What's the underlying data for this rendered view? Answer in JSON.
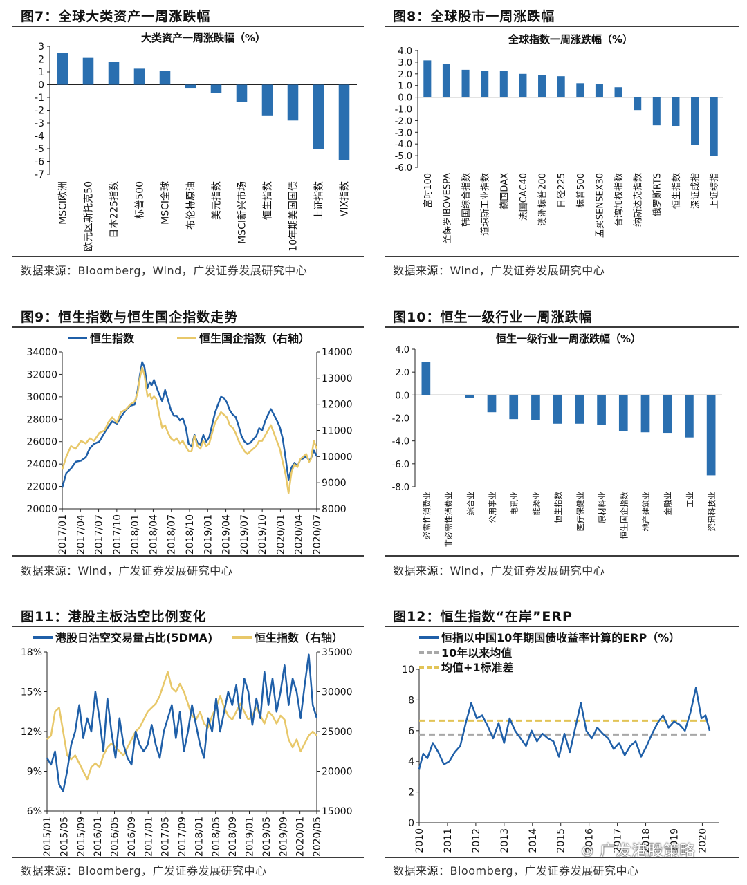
{
  "figures": {
    "fig7": {
      "title": "图7：全球大类资产一周涨跌幅",
      "source": "数据来源：Bloomberg，Wind，广发证券发展研究中心"
    },
    "fig8": {
      "title": "图8：全球股市一周涨跌幅",
      "source": "数据来源：Wind，广发证券发展研究中心"
    },
    "fig9": {
      "title": "图9：恒生指数与恒生国企指数走势",
      "source": "数据来源：Wind，广发证券发展研究中心"
    },
    "fig10": {
      "title": "图10：恒生一级行业一周涨跌幅",
      "source": "数据来源：Wind，广发证券发展研究中心"
    },
    "fig11": {
      "title": "图11：港股主板沽空比例变化",
      "source": "数据来源：Bloomberg，广发证券发展研究中心"
    },
    "fig12": {
      "title": "图12：恒生指数“在岸”ERP",
      "source": "数据来源：Bloomberg，广发证券发展研究中心"
    }
  },
  "watermark": "广发港股策略",
  "colors": {
    "bar": "#2a6fb0",
    "blue_line": "#1f5fa8",
    "gold_line": "#e8c86a",
    "gray_dash": "#a8a8a8",
    "gold_dash": "#e2c457"
  },
  "chart_data": [
    {
      "id": "fig7",
      "type": "bar",
      "title": "大类资产一周涨跌幅（%）",
      "categories": [
        "MSCI欧洲",
        "欧元区斯托克50",
        "日本225指数",
        "标普500",
        "MSCI全球",
        "布伦特原油",
        "美元指数",
        "MSCI新兴市场",
        "恒生指数",
        "10年期美国国债",
        "上证指数",
        "VIX指数"
      ],
      "values": [
        2.5,
        2.1,
        1.8,
        1.25,
        1.1,
        -0.3,
        -0.65,
        -1.35,
        -2.45,
        -2.8,
        -5.0,
        -5.9
      ],
      "ylim": [
        -7,
        3
      ],
      "yticks": [
        "3",
        "2",
        "1",
        "0",
        "-1",
        "-2",
        "-3",
        "-4",
        "-5",
        "-6",
        "-7"
      ]
    },
    {
      "id": "fig8",
      "type": "bar",
      "title": "全球指数一周涨跌幅（%）",
      "categories": [
        "富时100",
        "圣保罗IBOVESPA",
        "韩国综合指数",
        "道琼斯工业指数",
        "德国DAX",
        "法国CAC40",
        "澳洲标普200",
        "日经225",
        "标普500",
        "孟买SENSEX30",
        "台湾加权指数",
        "纳斯达克指数",
        "俄罗斯RTS",
        "恒生指数",
        "深证成指",
        "上证综指"
      ],
      "values": [
        3.15,
        2.85,
        2.35,
        2.25,
        2.25,
        2.0,
        1.9,
        1.8,
        1.2,
        1.1,
        0.85,
        -1.1,
        -2.4,
        -2.45,
        -4.05,
        -5.0
      ],
      "ylim": [
        -6,
        4
      ],
      "yticks": [
        "4.0",
        "3.0",
        "2.0",
        "1.0",
        "0.0",
        "-1.0",
        "-2.0",
        "-3.0",
        "-4.0",
        "-5.0",
        "-6.0"
      ]
    },
    {
      "id": "fig9",
      "type": "line",
      "legend": [
        "恒生指数",
        "恒生国企指数（右轴）"
      ],
      "xticks": [
        "2017/01",
        "2017/04",
        "2017/07",
        "2017/10",
        "2018/01",
        "2018/04",
        "2018/07",
        "2018/10",
        "2019/01",
        "2019/04",
        "2019/07",
        "2019/10",
        "2020/01",
        "2020/04",
        "2020/07"
      ],
      "yticks_left": [
        "34000",
        "32000",
        "30000",
        "28000",
        "26000",
        "24000",
        "22000",
        "20000"
      ],
      "yticks_right": [
        "14000",
        "13000",
        "12000",
        "11000",
        "10000",
        "9000",
        "8000"
      ],
      "ylim_left": [
        20000,
        34000
      ],
      "ylim_right": [
        8000,
        14000
      ],
      "series": [
        {
          "name": "恒生指数",
          "axis": "left",
          "x": [
            0,
            0.7,
            1.5,
            2.3,
            3.2,
            4.0,
            4.7,
            5.4,
            6.3,
            7.2,
            7.8,
            8.5,
            9.3,
            10.0,
            10.8,
            11.6,
            12.3,
            12.8,
            13.2,
            13.6,
            14.0,
            14.5,
            14.9,
            15.2,
            15.6,
            16.0,
            16.5,
            17.0,
            17.5,
            18.0,
            18.5,
            19.0,
            19.5,
            20.0,
            20.5,
            21.0,
            21.5,
            22.0,
            22.5,
            23.0,
            23.5,
            24.0,
            24.5,
            25.0,
            25.5,
            26.0,
            26.5,
            27.0,
            27.5,
            28.0,
            28.5,
            29.0,
            29.5,
            30.0,
            30.5,
            31.0,
            31.5,
            32.0,
            32.5,
            33.0,
            33.5,
            34.0,
            34.5,
            35.0,
            35.5,
            36.0,
            36.5,
            37.0,
            37.5,
            38.0,
            38.5,
            39.0,
            39.5,
            40.0,
            40.5,
            41.0,
            41.5,
            42.0,
            42.3,
            42.8,
            43.3
          ],
          "y": [
            21900,
            23200,
            23600,
            24200,
            24300,
            24600,
            25400,
            25800,
            26000,
            26800,
            27300,
            27800,
            27600,
            28200,
            28800,
            29200,
            29300,
            30500,
            31900,
            33100,
            32600,
            30800,
            31300,
            31000,
            31500,
            30900,
            30200,
            29600,
            30600,
            29700,
            28800,
            28300,
            28300,
            27900,
            28100,
            27300,
            25800,
            25600,
            26600,
            25900,
            25700,
            26600,
            26000,
            26400,
            27500,
            28600,
            29300,
            30000,
            29900,
            29500,
            28800,
            28400,
            28200,
            27400,
            26500,
            26000,
            25800,
            25900,
            26200,
            26500,
            27200,
            27000,
            27800,
            28400,
            28900,
            28400,
            27900,
            27300,
            26300,
            24500,
            22600,
            23700,
            24100,
            23800,
            24400,
            24500,
            24700,
            24300,
            24500,
            25200,
            24700
          ]
        },
        {
          "name": "恒生国企指数（右轴）",
          "axis": "right",
          "x": [
            0,
            0.7,
            1.5,
            2.3,
            3.2,
            4.0,
            4.7,
            5.4,
            6.3,
            7.2,
            7.8,
            8.5,
            9.3,
            10.0,
            10.8,
            11.6,
            12.3,
            12.8,
            13.2,
            13.6,
            14.0,
            14.5,
            14.9,
            15.2,
            15.6,
            16.0,
            16.5,
            17.0,
            17.5,
            18.0,
            18.5,
            19.0,
            19.5,
            20.0,
            20.5,
            21.0,
            21.5,
            22.0,
            22.5,
            23.0,
            23.5,
            24.0,
            24.5,
            25.0,
            25.5,
            26.0,
            26.5,
            27.0,
            27.5,
            28.0,
            28.5,
            29.0,
            29.5,
            30.0,
            30.5,
            31.0,
            31.5,
            32.0,
            32.5,
            33.0,
            33.5,
            34.0,
            34.5,
            35.0,
            35.5,
            36.0,
            36.5,
            37.0,
            37.5,
            38.0,
            38.5,
            39.0,
            39.5,
            40.0,
            40.5,
            41.0,
            41.5,
            42.0,
            42.3,
            42.8,
            43.3
          ],
          "y": [
            9500,
            10000,
            10400,
            10300,
            10600,
            10500,
            10700,
            10600,
            10900,
            11000,
            11300,
            11500,
            11300,
            11700,
            11800,
            12000,
            12100,
            12400,
            13000,
            13400,
            13100,
            12300,
            12400,
            12200,
            12300,
            12200,
            11600,
            11100,
            11200,
            10900,
            10700,
            10600,
            10700,
            10500,
            10600,
            10400,
            10200,
            10200,
            10800,
            10400,
            10300,
            10600,
            10400,
            10500,
            10900,
            11300,
            11500,
            11700,
            11600,
            11500,
            11200,
            11100,
            10900,
            10600,
            10400,
            10200,
            10100,
            10200,
            10300,
            10400,
            10600,
            10600,
            10800,
            11000,
            11200,
            10900,
            10600,
            10300,
            9800,
            9300,
            8600,
            9400,
            9700,
            9600,
            9900,
            10000,
            10100,
            9800,
            9900,
            10600,
            10300
          ]
        }
      ]
    },
    {
      "id": "fig10",
      "type": "bar",
      "title": "恒生一级行业一周涨跌幅（%）",
      "categories": [
        "必需性消费业",
        "非必需性消费业",
        "综合业",
        "公用事业",
        "电讯业",
        "能源业",
        "恒生指数",
        "医疗保健业",
        "原材料业",
        "恒生国企指数",
        "地产建筑业",
        "金融业",
        "工业",
        "资讯科技业"
      ],
      "values": [
        2.9,
        0.0,
        -0.25,
        -1.5,
        -2.1,
        -2.2,
        -2.5,
        -2.5,
        -2.6,
        -3.15,
        -3.25,
        -3.3,
        -3.7,
        -7.0
      ],
      "ylim": [
        -8,
        4
      ],
      "yticks": [
        "4.0",
        "2.0",
        "0.0",
        "-2.0",
        "-4.0",
        "-6.0",
        "-8.0"
      ]
    },
    {
      "id": "fig11",
      "type": "line",
      "legend": [
        "港股日沽空交易量占比(5DMA)",
        "恒生指数（右轴）"
      ],
      "xticks": [
        "2015/01",
        "2015/05",
        "2015/09",
        "2016/01",
        "2016/05",
        "2016/09",
        "2017/01",
        "2017/05",
        "2017/09",
        "2018/01",
        "2018/05",
        "2018/09",
        "2019/01",
        "2019/05",
        "2019/09",
        "2020/01",
        "2020/05"
      ],
      "yticks_left": [
        "18%",
        "15%",
        "12%",
        "9%",
        "6%"
      ],
      "yticks_right": [
        "35000",
        "30000",
        "25000",
        "20000",
        "15000"
      ],
      "ylim_left": [
        6,
        18
      ],
      "ylim_right": [
        15000,
        35000
      ],
      "series": [
        {
          "name": "港股日沽空交易量占比(5DMA)",
          "axis": "left",
          "x": [
            0,
            1,
            2,
            3,
            4,
            5,
            6,
            7,
            8,
            9,
            10,
            11,
            12,
            13,
            14,
            15,
            16,
            17,
            18,
            19,
            20,
            21,
            22,
            23,
            24,
            25,
            26,
            27,
            28,
            29,
            30,
            31,
            32,
            33,
            34,
            35,
            36,
            37,
            38,
            39,
            40,
            41,
            42,
            43,
            44,
            45,
            46,
            47,
            48,
            49,
            50,
            51,
            52,
            53,
            54,
            55,
            56,
            57,
            58,
            59,
            60,
            61,
            62,
            63,
            64,
            65,
            66,
            67
          ],
          "y": [
            10,
            9.5,
            10.5,
            8,
            7.5,
            9,
            11,
            12,
            14,
            11.5,
            13,
            12,
            15,
            13,
            10.5,
            14.5,
            12,
            10,
            13,
            11,
            10,
            9.5,
            12,
            11,
            10.5,
            11,
            12.5,
            11,
            10,
            12,
            13,
            14,
            11.5,
            13.5,
            10.5,
            12,
            14,
            12.5,
            11,
            10,
            13,
            12,
            14.5,
            12,
            13.5,
            15,
            14,
            15.5,
            13,
            16,
            15,
            12.5,
            14.5,
            13,
            16.5,
            14,
            16,
            13.5,
            15,
            17,
            14,
            16,
            15,
            13,
            15.5,
            17.8,
            14,
            13
          ]
        },
        {
          "name": "恒生指数（右轴）",
          "axis": "right",
          "x": [
            0,
            1,
            2,
            3,
            4,
            5,
            6,
            7,
            8,
            9,
            10,
            11,
            12,
            13,
            14,
            15,
            16,
            17,
            18,
            19,
            20,
            21,
            22,
            23,
            24,
            25,
            26,
            27,
            28,
            29,
            30,
            31,
            32,
            33,
            34,
            35,
            36,
            37,
            38,
            39,
            40,
            41,
            42,
            43,
            44,
            45,
            46,
            47,
            48,
            49,
            50,
            51,
            52,
            53,
            54,
            55,
            56,
            57,
            58,
            59,
            60,
            61,
            62,
            63,
            64,
            65,
            66,
            67
          ],
          "y": [
            24000,
            24500,
            27500,
            28000,
            25000,
            22000,
            21500,
            22000,
            21000,
            20000,
            19000,
            20500,
            21000,
            20500,
            22000,
            23000,
            23500,
            23000,
            22500,
            22000,
            23000,
            24000,
            25000,
            25500,
            26500,
            27500,
            28000,
            28500,
            29500,
            31000,
            32500,
            30500,
            30000,
            31000,
            30000,
            28500,
            27000,
            26500,
            27500,
            26000,
            25500,
            27000,
            28000,
            29500,
            28000,
            27000,
            26500,
            27500,
            28500,
            27500,
            26500,
            27000,
            28000,
            27000,
            26000,
            27500,
            27000,
            26000,
            27000,
            26500,
            24000,
            23000,
            24000,
            22500,
            23500,
            24500,
            25000,
            24500
          ]
        }
      ]
    },
    {
      "id": "fig12",
      "type": "line",
      "legend": [
        "恒指以中国10年期国债收益率计算的ERP（%）",
        "10年以来均值",
        "均值+1标准差"
      ],
      "xticks": [
        "2010",
        "2011",
        "2012",
        "2013",
        "2014",
        "2015",
        "2016",
        "2017",
        "2018",
        "2019",
        "2020"
      ],
      "yticks": [
        "10",
        "8",
        "6",
        "4",
        "2",
        "0"
      ],
      "ylim": [
        0,
        10
      ],
      "mean": 5.75,
      "mean_plus_1sd": 6.65,
      "series": [
        {
          "name": "恒指以中国10年期国债收益率计算的ERP（%）",
          "x": [
            0,
            0.15,
            0.3,
            0.5,
            0.7,
            0.9,
            1.1,
            1.3,
            1.5,
            1.7,
            1.9,
            2.1,
            2.3,
            2.5,
            2.7,
            2.9,
            3.1,
            3.3,
            3.5,
            3.7,
            3.9,
            4.1,
            4.3,
            4.5,
            4.7,
            4.9,
            5.1,
            5.3,
            5.5,
            5.7,
            5.9,
            6.1,
            6.3,
            6.5,
            6.7,
            6.9,
            7.1,
            7.3,
            7.5,
            7.7,
            7.9,
            8.1,
            8.3,
            8.5,
            8.7,
            8.9,
            9.1,
            9.3,
            9.5,
            9.7,
            9.9,
            10.1,
            10.3,
            10.45,
            10.6
          ],
          "y": [
            3.5,
            4.5,
            4.2,
            5.2,
            4.6,
            3.8,
            4.0,
            4.6,
            5.0,
            6.5,
            7.8,
            6.8,
            7.0,
            6.3,
            5.5,
            6.5,
            5.2,
            6.8,
            6.0,
            5.5,
            5.0,
            6.0,
            5.3,
            5.8,
            5.5,
            5.3,
            4.3,
            5.8,
            4.6,
            6.2,
            7.8,
            6.0,
            5.5,
            6.2,
            5.8,
            5.5,
            4.8,
            5.2,
            4.4,
            5.0,
            5.3,
            4.3,
            5.0,
            5.8,
            6.5,
            7.0,
            6.2,
            6.6,
            6.4,
            6.0,
            7.2,
            8.8,
            6.8,
            7.0,
            6.0
          ]
        }
      ]
    }
  ]
}
